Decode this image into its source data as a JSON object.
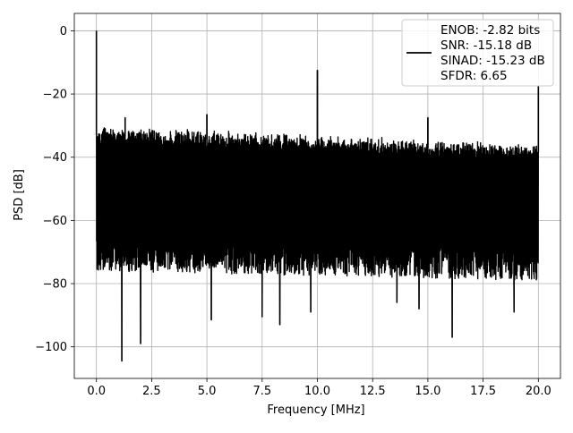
{
  "chart_data": {
    "type": "line",
    "xlabel": "Frequency [MHz]",
    "ylabel": "PSD [dB]",
    "xlim": [
      -1.0,
      21.0
    ],
    "ylim": [
      -110.0,
      5.5
    ],
    "grid": true,
    "x_ticks": [
      0.0,
      2.5,
      5.0,
      7.5,
      10.0,
      12.5,
      15.0,
      17.5,
      20.0
    ],
    "x_tick_labels": [
      "0.0",
      "2.5",
      "5.0",
      "7.5",
      "10.0",
      "12.5",
      "15.0",
      "17.5",
      "20.0"
    ],
    "y_ticks": [
      0,
      -20,
      -40,
      -60,
      -80,
      -100
    ],
    "y_tick_labels": [
      "0",
      "−20",
      "−40",
      "−60",
      "−80",
      "−100"
    ],
    "legend": {
      "location": "top-right",
      "lines": [
        "ENOB: -2.82 bits",
        "SNR: -15.18 dB",
        "SINAD: -15.23 dB",
        "SFDR: 6.65"
      ]
    },
    "series": [
      {
        "color": "#000000",
        "noise_band": {
          "x": [
            0.0,
            20.0
          ],
          "upper_db": [
            -30.0,
            -35.5
          ],
          "lower_db": [
            -71.0,
            -74.0
          ]
        },
        "peaks": [
          {
            "x": 0.0,
            "y": 0.0
          },
          {
            "x": 1.3,
            "y": -27.5
          },
          {
            "x": 5.0,
            "y": -26.5
          },
          {
            "x": 10.0,
            "y": -12.5
          },
          {
            "x": 15.0,
            "y": -27.5
          },
          {
            "x": 20.0,
            "y": -17.5
          }
        ],
        "dips": [
          {
            "x": 1.15,
            "y": -104.5
          },
          {
            "x": 2.0,
            "y": -99.0
          },
          {
            "x": 5.2,
            "y": -91.5
          },
          {
            "x": 7.5,
            "y": -90.5
          },
          {
            "x": 8.3,
            "y": -93.0
          },
          {
            "x": 9.7,
            "y": -89.0
          },
          {
            "x": 13.6,
            "y": -86.0
          },
          {
            "x": 14.6,
            "y": -88.0
          },
          {
            "x": 16.1,
            "y": -97.0
          },
          {
            "x": 18.9,
            "y": -89.0
          }
        ]
      }
    ]
  },
  "colors": {
    "line": "#000000",
    "grid": "#b0b0b0",
    "legend_border": "#cccccc"
  }
}
